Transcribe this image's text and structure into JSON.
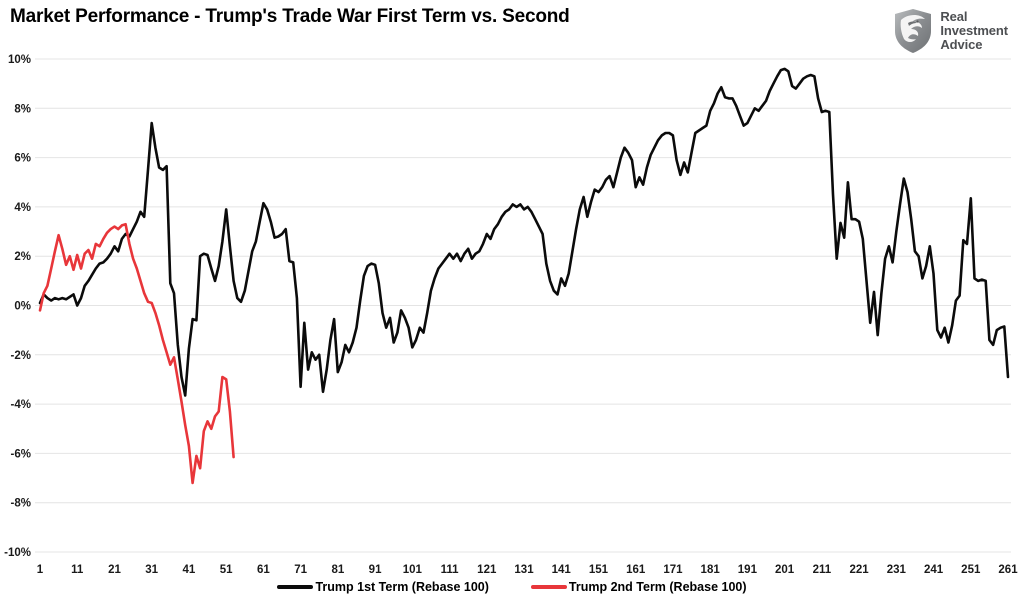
{
  "header": {
    "title": "Market Performance - Trump's Trade War First Term vs. Second",
    "logo": {
      "line1": "Real",
      "line2": "Investment",
      "line3": "Advice"
    }
  },
  "colors": {
    "series1": "#0b0b0b",
    "series2": "#e8363a",
    "gridline": "#e4e4e4",
    "axis_text": "#1a1a1a",
    "logo_gray": "#8a8d90"
  },
  "chart_data": {
    "type": "line",
    "title": "Market Performance - Trump's Trade War First Term vs. Second",
    "xlabel": "",
    "ylabel": "",
    "x_start": 1,
    "x_end": 261,
    "x_tick_interval": 10,
    "ylim": [
      -10,
      10
    ],
    "y_tick_values": [
      10,
      8,
      6,
      4,
      2,
      0,
      -2,
      -4,
      -6,
      -8,
      -10
    ],
    "y_tick_suffix": "%",
    "grid": "horizontal-only",
    "legend_position": "bottom-center",
    "series": [
      {
        "name": "Trump 1st Term (Rebase 100)",
        "color": "#0b0b0b",
        "values": [
          0.1,
          0.45,
          0.3,
          0.2,
          0.3,
          0.25,
          0.3,
          0.25,
          0.35,
          0.45,
          0.0,
          0.3,
          0.8,
          1.0,
          1.25,
          1.5,
          1.7,
          1.75,
          1.9,
          2.1,
          2.4,
          2.2,
          2.7,
          2.9,
          2.8,
          3.1,
          3.4,
          3.8,
          3.6,
          5.5,
          7.4,
          6.4,
          5.6,
          5.5,
          5.65,
          0.9,
          0.5,
          -1.6,
          -2.9,
          -3.65,
          -1.75,
          -0.55,
          -0.6,
          2.0,
          2.1,
          2.05,
          1.5,
          1.0,
          1.6,
          2.6,
          3.9,
          2.4,
          1.0,
          0.3,
          0.15,
          0.6,
          1.4,
          2.2,
          2.6,
          3.4,
          4.15,
          3.9,
          3.4,
          2.75,
          2.8,
          2.9,
          3.1,
          1.8,
          1.75,
          0.3,
          -3.3,
          -0.7,
          -2.6,
          -1.9,
          -2.2,
          -2.0,
          -3.5,
          -2.6,
          -1.4,
          -0.55,
          -2.7,
          -2.3,
          -1.6,
          -1.9,
          -1.5,
          -0.9,
          0.2,
          1.2,
          1.6,
          1.7,
          1.65,
          0.9,
          -0.3,
          -0.9,
          -0.5,
          -1.5,
          -1.1,
          -0.2,
          -0.5,
          -0.9,
          -1.7,
          -1.4,
          -0.9,
          -1.1,
          -0.3,
          0.6,
          1.1,
          1.5,
          1.7,
          1.9,
          2.1,
          1.9,
          2.1,
          1.8,
          2.1,
          2.3,
          1.9,
          2.1,
          2.2,
          2.5,
          2.9,
          2.7,
          3.1,
          3.3,
          3.6,
          3.8,
          3.9,
          4.1,
          4.0,
          4.1,
          3.9,
          4.0,
          3.8,
          3.5,
          3.2,
          2.9,
          1.7,
          1.0,
          0.6,
          0.45,
          1.1,
          0.8,
          1.3,
          2.2,
          3.1,
          3.9,
          4.4,
          3.6,
          4.2,
          4.7,
          4.6,
          4.8,
          5.1,
          5.25,
          4.8,
          5.4,
          6.0,
          6.4,
          6.2,
          5.9,
          4.8,
          5.2,
          4.9,
          5.6,
          6.1,
          6.4,
          6.7,
          6.9,
          7.0,
          7.0,
          6.9,
          5.9,
          5.3,
          5.8,
          5.4,
          6.2,
          7.0,
          7.1,
          7.2,
          7.3,
          7.9,
          8.2,
          8.6,
          8.85,
          8.45,
          8.4,
          8.4,
          8.1,
          7.7,
          7.3,
          7.4,
          7.7,
          8.0,
          7.9,
          8.1,
          8.3,
          8.7,
          9.0,
          9.3,
          9.55,
          9.6,
          9.5,
          8.9,
          8.8,
          9.0,
          9.2,
          9.3,
          9.35,
          9.3,
          8.4,
          7.85,
          7.9,
          7.85,
          4.5,
          1.9,
          3.35,
          2.75,
          5.0,
          3.5,
          3.5,
          3.4,
          2.7,
          1.0,
          -0.7,
          0.55,
          -1.2,
          0.5,
          1.9,
          2.4,
          1.75,
          3.0,
          4.1,
          5.15,
          4.6,
          3.5,
          2.2,
          2.0,
          1.1,
          1.6,
          2.4,
          1.3,
          -1.0,
          -1.3,
          -0.9,
          -1.5,
          -0.8,
          0.2,
          0.4,
          2.65,
          2.5,
          4.35,
          1.1,
          1.0,
          1.05,
          1.0,
          -1.4,
          -1.6,
          -1.0,
          -0.9,
          -0.85,
          -2.9
        ]
      },
      {
        "name": "Trump 2nd Term (Rebase 100)",
        "color": "#e8363a",
        "values": [
          -0.2,
          0.5,
          0.8,
          1.5,
          2.2,
          2.85,
          2.3,
          1.65,
          2.0,
          1.45,
          2.05,
          1.5,
          2.1,
          2.25,
          1.9,
          2.5,
          2.4,
          2.7,
          2.95,
          3.1,
          3.2,
          3.1,
          3.25,
          3.3,
          2.5,
          1.9,
          1.5,
          1.0,
          0.5,
          0.15,
          0.1,
          -0.3,
          -0.8,
          -1.4,
          -1.9,
          -2.4,
          -2.1,
          -3.0,
          -3.9,
          -4.85,
          -5.7,
          -7.2,
          -6.1,
          -6.6,
          -5.1,
          -4.7,
          -5.0,
          -4.5,
          -4.3,
          -2.9,
          -3.0,
          -4.3,
          -6.15
        ]
      }
    ]
  }
}
